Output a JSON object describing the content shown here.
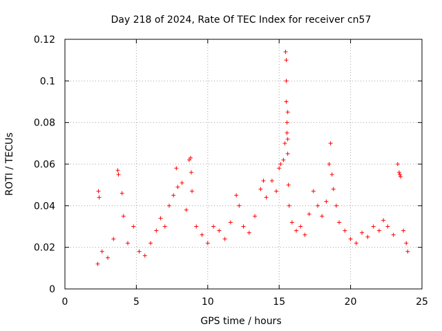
{
  "chart_data": {
    "type": "scatter",
    "title": "Day 218 of 2024, Rate Of TEC Index for receiver cn57",
    "xlabel": "GPS time / hours",
    "ylabel": "ROTI / TECUs",
    "xlim": [
      0,
      25
    ],
    "ylim": [
      0,
      0.12
    ],
    "xticks": [
      "0",
      "5",
      "10",
      "15",
      "20",
      "25"
    ],
    "yticks": [
      "0",
      "0.02",
      "0.04",
      "0.06",
      "0.08",
      "0.1",
      "0.12"
    ],
    "grid": true,
    "marker": "+",
    "color": "#ff0000",
    "series": [
      {
        "name": "ROTI",
        "x": [
          2.3,
          2.35,
          2.4,
          2.6,
          3.0,
          3.4,
          3.7,
          3.75,
          4.0,
          4.1,
          4.4,
          4.8,
          5.2,
          5.6,
          6.0,
          6.4,
          6.7,
          7.0,
          7.3,
          7.6,
          7.8,
          7.9,
          8.2,
          8.5,
          8.7,
          8.8,
          8.85,
          8.9,
          9.2,
          9.6,
          10.0,
          10.4,
          10.8,
          11.2,
          11.6,
          12.0,
          12.2,
          12.5,
          12.9,
          13.3,
          13.7,
          13.9,
          14.1,
          14.5,
          14.8,
          15.0,
          15.1,
          15.3,
          15.4,
          15.45,
          15.5,
          15.5,
          15.5,
          15.55,
          15.55,
          15.6,
          15.6,
          15.6,
          15.65,
          15.7,
          15.9,
          16.2,
          16.5,
          16.8,
          17.1,
          17.4,
          17.7,
          18.0,
          18.3,
          18.5,
          18.6,
          18.7,
          18.8,
          19.0,
          19.2,
          19.6,
          20.0,
          20.4,
          20.8,
          21.2,
          21.6,
          22.0,
          22.3,
          22.6,
          23.0,
          23.3,
          23.4,
          23.45,
          23.5,
          23.7,
          23.9,
          24.0
        ],
        "y": [
          0.012,
          0.047,
          0.044,
          0.018,
          0.015,
          0.024,
          0.057,
          0.055,
          0.046,
          0.035,
          0.022,
          0.03,
          0.018,
          0.016,
          0.022,
          0.028,
          0.034,
          0.03,
          0.04,
          0.045,
          0.058,
          0.049,
          0.051,
          0.038,
          0.062,
          0.063,
          0.056,
          0.047,
          0.03,
          0.026,
          0.022,
          0.03,
          0.028,
          0.024,
          0.032,
          0.045,
          0.04,
          0.03,
          0.027,
          0.035,
          0.048,
          0.052,
          0.044,
          0.052,
          0.047,
          0.058,
          0.06,
          0.062,
          0.07,
          0.114,
          0.11,
          0.1,
          0.09,
          0.08,
          0.075,
          0.085,
          0.072,
          0.065,
          0.05,
          0.04,
          0.032,
          0.028,
          0.03,
          0.026,
          0.036,
          0.047,
          0.04,
          0.035,
          0.042,
          0.06,
          0.07,
          0.055,
          0.048,
          0.04,
          0.032,
          0.028,
          0.024,
          0.022,
          0.027,
          0.025,
          0.03,
          0.028,
          0.033,
          0.03,
          0.026,
          0.06,
          0.056,
          0.055,
          0.054,
          0.028,
          0.022,
          0.018
        ]
      }
    ]
  }
}
